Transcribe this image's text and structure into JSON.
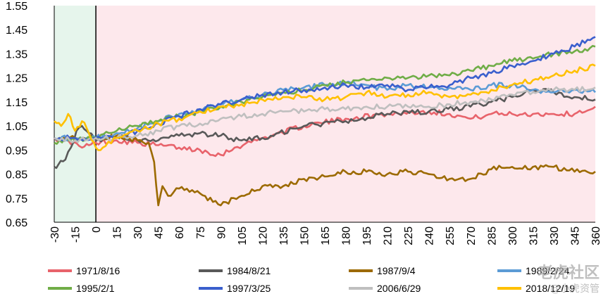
{
  "chart_data": {
    "type": "line",
    "title": "",
    "xlabel": "",
    "ylabel": "",
    "xlim": [
      -30,
      360
    ],
    "ylim": [
      0.65,
      1.55
    ],
    "x_ticks": [
      -30,
      -15,
      0,
      15,
      30,
      45,
      60,
      75,
      90,
      105,
      120,
      135,
      150,
      165,
      180,
      195,
      210,
      225,
      240,
      255,
      270,
      285,
      300,
      315,
      330,
      345,
      360
    ],
    "x_tick_labels": [
      "-30",
      "-15",
      "0",
      "15",
      "30",
      "45",
      "60",
      "75",
      "90",
      "105",
      "120",
      "135",
      "150",
      "165",
      "180",
      "195",
      "210",
      "225",
      "240",
      "255",
      "270",
      "285",
      "300",
      "315",
      "330",
      "345",
      "360"
    ],
    "y_ticks": [
      0.65,
      0.75,
      0.85,
      0.95,
      1.05,
      1.15,
      1.25,
      1.35,
      1.45,
      1.55
    ],
    "y_tick_labels": [
      "0.65",
      "0.75",
      "0.85",
      "0.95",
      "1.05",
      "1.15",
      "1.25",
      "1.35",
      "1.45",
      "1.55"
    ],
    "shaded_regions": [
      {
        "x_from": -30,
        "x_to": 0,
        "color": "#e6f5ec"
      },
      {
        "x_from": 0,
        "x_to": 360,
        "color": "#fde8ec"
      }
    ],
    "vline_x": 0,
    "legend_position": "bottom",
    "series": [
      {
        "name": "1971/8/16",
        "color": "#e8636b",
        "x": [
          -30,
          -20,
          -10,
          -5,
          0,
          15,
          30,
          45,
          60,
          75,
          90,
          100,
          120,
          150,
          180,
          210,
          240,
          255,
          270,
          285,
          300,
          315,
          330,
          345,
          360
        ],
        "y": [
          1.0,
          0.99,
          0.96,
          0.97,
          0.98,
          0.99,
          0.98,
          0.97,
          0.96,
          0.95,
          0.93,
          0.96,
          1.0,
          1.05,
          1.08,
          1.1,
          1.11,
          1.1,
          1.08,
          1.1,
          1.1,
          1.1,
          1.1,
          1.1,
          1.13
        ]
      },
      {
        "name": "1984/8/21",
        "color": "#595959",
        "x": [
          -30,
          -27,
          -22,
          -18,
          -14,
          -10,
          -5,
          0,
          15,
          30,
          45,
          60,
          75,
          90,
          105,
          120,
          150,
          180,
          210,
          240,
          270,
          285,
          300,
          315,
          330,
          345,
          360
        ],
        "y": [
          0.88,
          0.89,
          0.91,
          0.96,
          1.03,
          1.05,
          1.02,
          0.99,
          1.01,
          0.99,
          0.99,
          1.01,
          1.02,
          1.01,
          0.99,
          1.0,
          1.05,
          1.07,
          1.1,
          1.11,
          1.13,
          1.15,
          1.17,
          1.2,
          1.19,
          1.17,
          1.16
        ]
      },
      {
        "name": "1987/9/4",
        "color": "#9c6a00",
        "x": [
          -30,
          -15,
          0,
          15,
          30,
          38,
          42,
          45,
          48,
          52,
          60,
          75,
          90,
          105,
          120,
          135,
          150,
          165,
          180,
          195,
          210,
          225,
          240,
          255,
          270,
          285,
          300,
          315,
          330,
          345,
          360
        ],
        "y": [
          1.0,
          1.0,
          1.0,
          1.01,
          0.99,
          0.98,
          0.9,
          0.72,
          0.8,
          0.76,
          0.79,
          0.77,
          0.72,
          0.76,
          0.8,
          0.8,
          0.83,
          0.84,
          0.86,
          0.86,
          0.85,
          0.86,
          0.85,
          0.83,
          0.83,
          0.87,
          0.88,
          0.88,
          0.88,
          0.86,
          0.86
        ]
      },
      {
        "name": "1989/2/24",
        "color": "#5b9bd5",
        "x": [
          -30,
          -15,
          0,
          15,
          30,
          45,
          60,
          75,
          90,
          105,
          120,
          135,
          150,
          165,
          180,
          195,
          210,
          225,
          240,
          255,
          270,
          285,
          300,
          315,
          330,
          345,
          360
        ],
        "y": [
          1.0,
          1.0,
          1.0,
          1.02,
          1.04,
          1.07,
          1.1,
          1.12,
          1.14,
          1.16,
          1.18,
          1.2,
          1.21,
          1.22,
          1.23,
          1.22,
          1.2,
          1.22,
          1.21,
          1.21,
          1.2,
          1.22,
          1.22,
          1.2,
          1.19,
          1.2,
          1.19
        ]
      },
      {
        "name": "1995/2/1",
        "color": "#70ad47",
        "x": [
          -30,
          -15,
          0,
          15,
          30,
          45,
          60,
          75,
          90,
          105,
          120,
          135,
          150,
          165,
          180,
          195,
          210,
          225,
          240,
          255,
          270,
          285,
          300,
          315,
          330,
          345,
          360
        ],
        "y": [
          0.98,
          0.99,
          1.0,
          1.03,
          1.05,
          1.07,
          1.09,
          1.11,
          1.13,
          1.15,
          1.17,
          1.19,
          1.2,
          1.22,
          1.23,
          1.24,
          1.25,
          1.25,
          1.26,
          1.26,
          1.28,
          1.3,
          1.32,
          1.33,
          1.35,
          1.36,
          1.38
        ]
      },
      {
        "name": "1997/3/25",
        "color": "#3a5fcd",
        "x": [
          -30,
          -15,
          0,
          15,
          30,
          45,
          60,
          75,
          90,
          105,
          120,
          135,
          150,
          165,
          180,
          195,
          210,
          225,
          240,
          255,
          270,
          285,
          300,
          315,
          330,
          345,
          360
        ],
        "y": [
          1.0,
          1.0,
          1.0,
          1.0,
          1.03,
          1.06,
          1.09,
          1.12,
          1.14,
          1.16,
          1.18,
          1.19,
          1.2,
          1.21,
          1.22,
          1.21,
          1.22,
          1.2,
          1.21,
          1.22,
          1.25,
          1.27,
          1.3,
          1.32,
          1.35,
          1.38,
          1.42
        ]
      },
      {
        "name": "2006/6/29",
        "color": "#bfbfbf",
        "x": [
          -30,
          -15,
          0,
          15,
          30,
          45,
          60,
          75,
          90,
          105,
          120,
          135,
          150,
          165,
          180,
          195,
          210,
          225,
          240,
          255,
          270,
          285,
          300,
          315,
          330,
          345,
          360
        ],
        "y": [
          1.0,
          0.99,
          1.0,
          1.0,
          1.01,
          1.03,
          1.05,
          1.06,
          1.08,
          1.09,
          1.1,
          1.11,
          1.11,
          1.12,
          1.12,
          1.13,
          1.13,
          1.13,
          1.13,
          1.14,
          1.15,
          1.16,
          1.18,
          1.19,
          1.2,
          1.2,
          1.21
        ]
      },
      {
        "name": "2018/12/19",
        "color": "#ffc000",
        "x": [
          -30,
          -25,
          -20,
          -15,
          -10,
          -5,
          0,
          5,
          15,
          30,
          45,
          60,
          75,
          90,
          105,
          120,
          135,
          150,
          165,
          180,
          195,
          210,
          225,
          240,
          255,
          270,
          285,
          300,
          315,
          330,
          345,
          360
        ],
        "y": [
          1.07,
          1.05,
          1.1,
          1.03,
          1.07,
          1.02,
          0.96,
          0.96,
          1.0,
          1.03,
          1.06,
          1.08,
          1.11,
          1.13,
          1.14,
          1.16,
          1.17,
          1.17,
          1.16,
          1.17,
          1.19,
          1.17,
          1.18,
          1.19,
          1.17,
          1.18,
          1.2,
          1.22,
          1.24,
          1.26,
          1.28,
          1.3
        ]
      }
    ]
  },
  "watermark": {
    "line1": "老虎社区",
    "line2": "@小虎资管"
  }
}
